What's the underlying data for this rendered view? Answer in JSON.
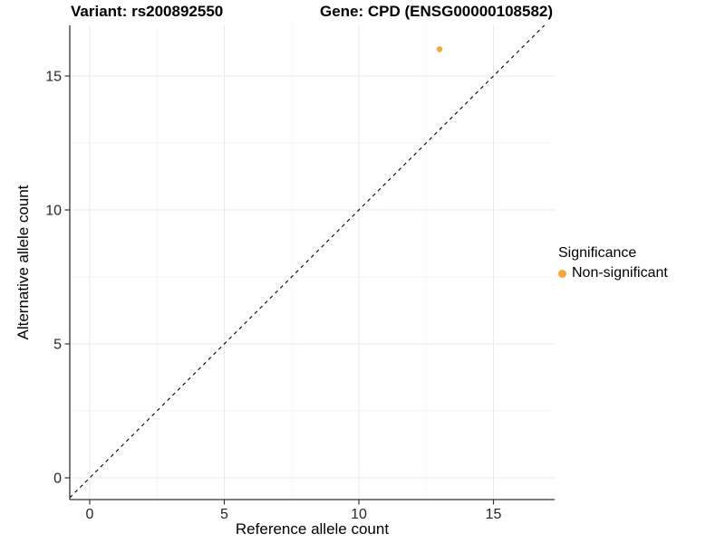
{
  "header": {
    "variant_title": "Variant: rs200892550",
    "gene_title": "Gene: CPD (ENSG00000108582)"
  },
  "axes": {
    "x_label": "Reference allele count",
    "y_label": "Alternative allele count"
  },
  "legend": {
    "title": "Significance",
    "items": [
      {
        "label": "Non-significant",
        "color": "#FAA53C"
      }
    ]
  },
  "chart_data": {
    "type": "scatter",
    "title": "Variant: rs200892550 / Gene: CPD (ENSG00000108582)",
    "xlabel": "Reference allele count",
    "ylabel": "Alternative allele count",
    "xlim": [
      -0.8,
      17.3
    ],
    "ylim": [
      -0.8,
      17.3
    ],
    "x_ticks": [
      0,
      5,
      10,
      15
    ],
    "y_ticks": [
      0,
      5,
      10,
      15
    ],
    "x_minor_ticks": [
      2.5,
      7.5,
      12.5
    ],
    "y_minor_ticks": [
      2.5,
      7.5,
      12.5
    ],
    "grid": true,
    "legend_position": "right",
    "series": [
      {
        "name": "Non-significant",
        "color": "#FAA53C",
        "marker": "circle",
        "points": [
          {
            "x": 13,
            "y": 16
          }
        ]
      }
    ],
    "reference_line": {
      "slope": 1,
      "intercept": 0,
      "style": "dashed",
      "color": "#000000"
    }
  },
  "colors": {
    "grid_major": "#e8e8e8",
    "grid_minor": "#f4f4f4",
    "axis_line": "#333333",
    "tick_text": "#262626"
  }
}
